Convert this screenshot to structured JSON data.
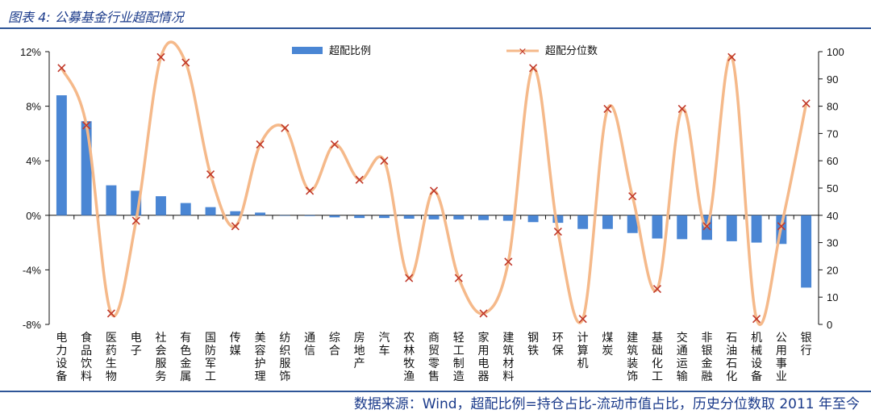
{
  "header": {
    "title": "图表 4: 公募基金行业超配情况"
  },
  "footer": {
    "source": "数据来源：Wind，超配比例=持仓占比-流动市值占比，历史分位数取 2011 年至今"
  },
  "chart_data": {
    "type": "bar",
    "categories": [
      "电力设备",
      "食品饮料",
      "医药生物",
      "电子",
      "社会服务",
      "有色金属",
      "国防军工",
      "传媒",
      "美容护理",
      "纺织服饰",
      "通信",
      "综合",
      "房地产",
      "汽车",
      "农林牧渔",
      "商贸零售",
      "轻工制造",
      "家用电器",
      "建筑材料",
      "钢铁",
      "环保",
      "计算机",
      "煤炭",
      "建筑装饰",
      "基础化工",
      "交通运输",
      "非银金融",
      "石油石化",
      "机械设备",
      "公用事业",
      "银行"
    ],
    "series": [
      {
        "name": "超配比例",
        "type": "bar",
        "axis": "left",
        "unit": "%",
        "values": [
          8.8,
          6.9,
          2.2,
          1.8,
          1.4,
          0.9,
          0.6,
          0.3,
          0.2,
          0.0,
          -0.05,
          -0.15,
          -0.2,
          -0.2,
          -0.25,
          -0.3,
          -0.3,
          -0.35,
          -0.4,
          -0.5,
          -0.55,
          -1.0,
          -1.0,
          -1.3,
          -1.7,
          -1.75,
          -1.8,
          -1.9,
          -2.0,
          -2.1,
          -5.3
        ]
      },
      {
        "name": "超配分位数",
        "type": "line",
        "axis": "right",
        "values": [
          94,
          73,
          4,
          38,
          98,
          96,
          55,
          36,
          66,
          72,
          49,
          66,
          53,
          60,
          17,
          49,
          17,
          4,
          23,
          94,
          34,
          2,
          79,
          47,
          13,
          79,
          36,
          98,
          2,
          36,
          81
        ]
      }
    ],
    "y_left": {
      "min": -8,
      "max": 12,
      "ticks": [
        -8,
        -4,
        0,
        4,
        8,
        12
      ],
      "labels": [
        "-8%",
        "-4%",
        "0%",
        "4%",
        "8%",
        "12%"
      ]
    },
    "y_right": {
      "min": 0,
      "max": 100,
      "ticks": [
        0,
        10,
        20,
        30,
        40,
        50,
        60,
        70,
        80,
        90,
        100
      ],
      "labels": [
        "0",
        "10",
        "20",
        "30",
        "40",
        "50",
        "60",
        "70",
        "80",
        "90",
        "100"
      ]
    },
    "legend": [
      "超配比例",
      "超配分位数"
    ],
    "legend_position": "top-center",
    "grid": false,
    "colors": {
      "bar": "#4a86d4",
      "line": "#f5b98a",
      "marker": "#c0392b",
      "axis": "#111111"
    }
  }
}
